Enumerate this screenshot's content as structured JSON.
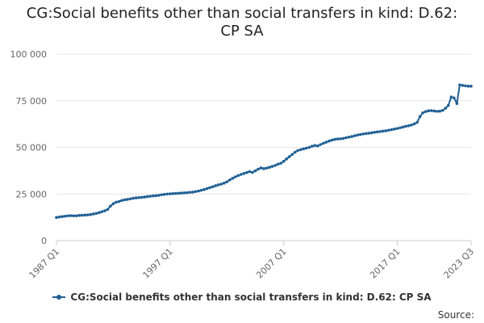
{
  "chart_data": {
    "type": "line",
    "title": "CG:Social benefits other than social transfers in kind: D.62: CP SA",
    "title_lines": [
      "CG:Social benefits other than social transfers in kind: D.62:",
      "CP SA"
    ],
    "xlabel": "",
    "ylabel": "",
    "ylim": [
      0,
      100000
    ],
    "yticks": [
      0,
      25000,
      50000,
      75000,
      100000
    ],
    "ytick_labels": [
      "0",
      "25 000",
      "50 000",
      "75 000",
      "100 000"
    ],
    "xtick_labels": [
      "1987 Q1",
      "1997 Q1",
      "2007 Q1",
      "2017 Q1",
      "2023 Q3"
    ],
    "xtick_index": [
      0,
      40,
      80,
      120,
      146
    ],
    "grid": true,
    "legend_position": "bottom",
    "series": [
      {
        "name": "CG:Social benefits other than social transfers in kind: D.62: CP SA",
        "color": "#206095",
        "x_start": "1987 Q1",
        "frequency": "quarterly",
        "values": [
          12400,
          12700,
          12900,
          13100,
          13300,
          13400,
          13300,
          13300,
          13500,
          13600,
          13700,
          13800,
          14000,
          14300,
          14600,
          15000,
          15500,
          16000,
          16700,
          18500,
          19800,
          20600,
          21000,
          21500,
          21900,
          22100,
          22400,
          22700,
          22900,
          23100,
          23200,
          23400,
          23600,
          23800,
          24000,
          24100,
          24300,
          24600,
          24800,
          25000,
          25100,
          25200,
          25300,
          25400,
          25500,
          25600,
          25700,
          25900,
          26000,
          26300,
          26600,
          27000,
          27400,
          27900,
          28400,
          28900,
          29400,
          29900,
          30300,
          30800,
          31500,
          32500,
          33400,
          34200,
          34900,
          35500,
          36000,
          36500,
          37000,
          36600,
          37400,
          38300,
          39000,
          38600,
          38900,
          39300,
          39800,
          40300,
          41000,
          41500,
          42500,
          43800,
          45000,
          46200,
          47400,
          48300,
          48800,
          49200,
          49600,
          50000,
          50600,
          51000,
          50800,
          51500,
          52200,
          52800,
          53400,
          53900,
          54300,
          54500,
          54600,
          54800,
          55200,
          55500,
          55800,
          56200,
          56600,
          56900,
          57200,
          57400,
          57600,
          57800,
          58100,
          58300,
          58500,
          58700,
          58900,
          59200,
          59500,
          59800,
          60100,
          60500,
          60900,
          61300,
          61600,
          62000,
          62600,
          63400,
          66500,
          68500,
          69200,
          69600,
          69700,
          69500,
          69300,
          69400,
          69800,
          71000,
          72500,
          77000,
          76500,
          73500,
          83500,
          83200,
          83000,
          82800,
          82800
        ]
      }
    ],
    "source_label": "Source:"
  }
}
